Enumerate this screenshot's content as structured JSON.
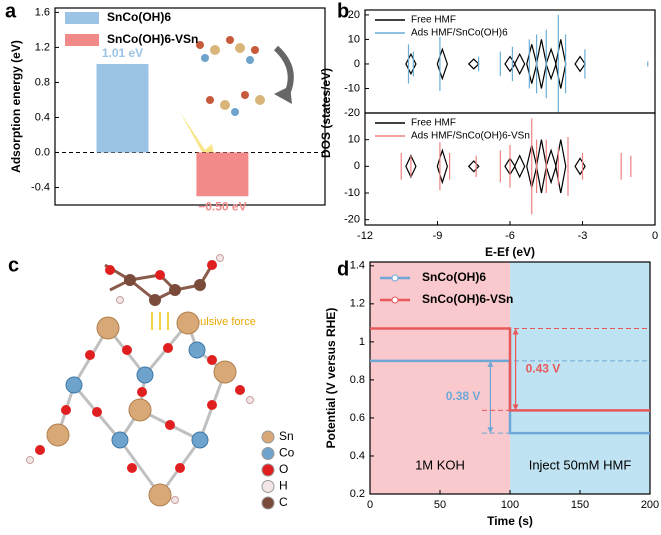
{
  "chart_data": [
    {
      "type": "bar",
      "label": "a",
      "ylabel": "Adsorption energy (eV)",
      "ylim": [
        -0.6,
        1.65
      ],
      "yticks": [
        1.6,
        1.2,
        0.8,
        0.4,
        {
          "value": 0,
          "label": "0.0"
        },
        -0.4
      ],
      "zero_line": true,
      "legend": "upper left",
      "series": [
        {
          "name": "SnCo(OH)6",
          "color": "#9ac3e6",
          "values": [
            1.01
          ],
          "value_labels": [
            "1.01 eV"
          ]
        },
        {
          "name": "SnCo(OH)6-VSn",
          "color": "#f28a8a",
          "values": [
            -0.5
          ],
          "value_labels": [
            "−0.50 eV"
          ]
        }
      ]
    },
    {
      "type": "spike",
      "label": "b",
      "ylabel": "DOS (states/eV)",
      "xlim": [
        -12,
        0
      ],
      "ylim": [
        -20,
        22
      ],
      "yticks": [
        20,
        10,
        0,
        -10,
        -20
      ],
      "legend": "upper left",
      "series": [
        {
          "name": "Free HMF",
          "color": "#000000",
          "shape": "diamond",
          "x": [
            -10.1,
            -8.8,
            -7.5,
            -6.0,
            -5.6,
            -5.1,
            -4.7,
            -4.3,
            -3.9,
            -3.1
          ],
          "values": [
            4,
            6,
            2,
            3,
            4,
            8,
            10,
            6,
            10,
            3
          ]
        },
        {
          "name": "Ads HMF/SnCo(OH)6",
          "color": "#6baed6",
          "shape": "line",
          "x": [
            -10.2,
            -10.0,
            -8.9,
            -7.3,
            -6.4,
            -5.9,
            -5.2,
            -4.9,
            -4.5,
            -4.0,
            -3.7,
            -2.9,
            -0.3
          ],
          "values": [
            8,
            5,
            11,
            3,
            5,
            7,
            10,
            12,
            14,
            20,
            12,
            6,
            1
          ]
        }
      ]
    },
    {
      "type": "spike",
      "xlabel": "E-Ef (eV)",
      "xlim": [
        -12,
        0
      ],
      "ylim": [
        -22,
        20
      ],
      "xticks": [
        -12,
        -9,
        -6,
        -3,
        0
      ],
      "yticks": [
        10,
        0,
        -10,
        -20
      ],
      "legend": "upper left",
      "series": [
        {
          "name": "Free HMF",
          "color": "#000000",
          "shape": "diamond",
          "x": [
            -10.1,
            -8.8,
            -7.5,
            -6.0,
            -5.6,
            -5.1,
            -4.7,
            -4.3,
            -3.9,
            -3.1
          ],
          "values": [
            4,
            6,
            2,
            3,
            4,
            8,
            10,
            6,
            10,
            3
          ]
        },
        {
          "name": "Ads HMF/SnCo(OH)6-VSn",
          "color": "#f08080",
          "shape": "line",
          "x": [
            -10.5,
            -10.1,
            -8.9,
            -8.5,
            -7.4,
            -6.4,
            -6.0,
            -5.1,
            -4.9,
            -4.5,
            -4.0,
            -3.6,
            -3.0,
            -1.4,
            -1.0
          ],
          "values": [
            5,
            4,
            9,
            5,
            4,
            6,
            8,
            18,
            10,
            10,
            7,
            11,
            5,
            5,
            4
          ]
        }
      ]
    },
    {
      "type": "line",
      "label": "d",
      "xlabel": "Time (s)",
      "ylabel": "Potential (V versus RHE)",
      "xlim": [
        0,
        200
      ],
      "ylim": [
        0.2,
        1.42
      ],
      "xticks": [
        0,
        50,
        100,
        150,
        200
      ],
      "yticks": [
        0.2,
        0.4,
        0.6,
        0.8,
        1.0,
        1.2,
        1.4
      ],
      "legend": "upper left",
      "shading": [
        {
          "from": 0,
          "to": 100,
          "color": "#f9c9cd",
          "label": "1M KOH"
        },
        {
          "from": 100,
          "to": 200,
          "color": "#bfe3f2",
          "label": "Inject 50mM HMF"
        }
      ],
      "annotations": [
        "0.38 V",
        "0.43 V"
      ],
      "series": [
        {
          "name": "SnCo(OH)6",
          "color": "#6fa8d6",
          "x": [
            0,
            100,
            100,
            200
          ],
          "values": [
            0.9,
            0.9,
            0.52,
            0.52
          ]
        },
        {
          "name": "SnCo(OH)6-VSn",
          "color": "#e8585a",
          "x": [
            0,
            100,
            100,
            200
          ],
          "values": [
            1.07,
            1.07,
            0.64,
            0.64
          ]
        }
      ]
    }
  ],
  "diagram": {
    "label": "c",
    "annotation": "Repulsive force",
    "legend": [
      "Sn",
      "Co",
      "O",
      "H",
      "C"
    ]
  }
}
